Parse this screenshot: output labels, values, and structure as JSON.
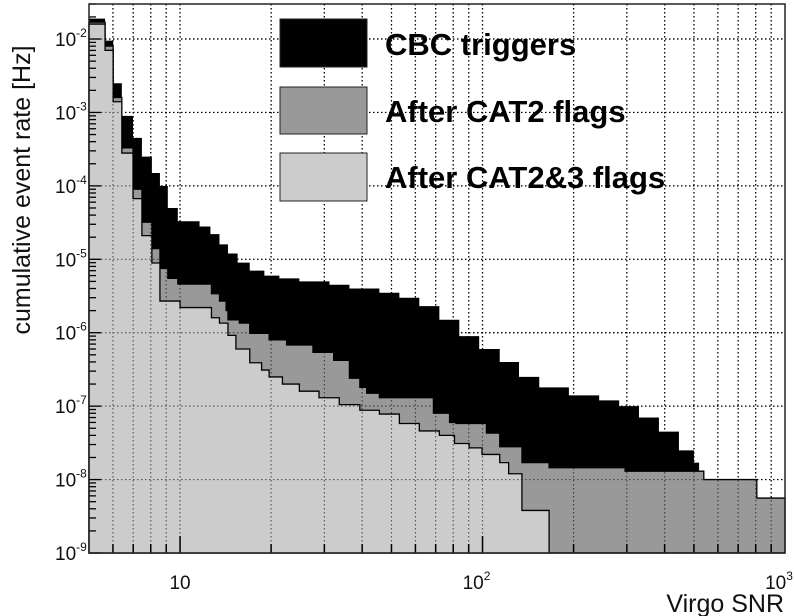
{
  "chart_data": {
    "type": "area",
    "title": "",
    "xlabel": "Virgo SNR",
    "ylabel": "cumulative event rate [Hz]",
    "xscale": "log",
    "yscale": "log",
    "xlim": [
      5,
      1000
    ],
    "ylim": [
      1e-09,
      0.03
    ],
    "grid": true,
    "legend_position": "top-right",
    "x_tick_labels": [
      {
        "value": 10,
        "base": "10",
        "exp": ""
      },
      {
        "value": 100,
        "base": "10",
        "exp": "2"
      },
      {
        "value": 1000,
        "base": "10",
        "exp": "3"
      }
    ],
    "y_tick_labels": [
      {
        "value": 0.01,
        "base": "10",
        "exp": "-2"
      },
      {
        "value": 0.001,
        "base": "10",
        "exp": "-3"
      },
      {
        "value": 0.0001,
        "base": "10",
        "exp": "-4"
      },
      {
        "value": 1e-05,
        "base": "10",
        "exp": "-5"
      },
      {
        "value": 1e-06,
        "base": "10",
        "exp": "-6"
      },
      {
        "value": 1e-07,
        "base": "10",
        "exp": "-7"
      },
      {
        "value": 1e-08,
        "base": "10",
        "exp": "-8"
      },
      {
        "value": 1e-09,
        "base": "10",
        "exp": "-9"
      }
    ],
    "series": [
      {
        "name": "CBC triggers",
        "color": "#000000",
        "steps": [
          [
            5,
            0.019
          ],
          [
            5.65,
            0.0095
          ],
          [
            6.01,
            0.0025
          ],
          [
            6.42,
            0.0009
          ],
          [
            6.99,
            0.00045
          ],
          [
            7.48,
            0.00025
          ],
          [
            8.07,
            0.00015
          ],
          [
            8.58,
            0.0001
          ],
          [
            9.11,
            5e-05
          ],
          [
            9.83,
            3.3e-05
          ],
          [
            11.6,
            2.8e-05
          ],
          [
            12.6,
            2.2e-05
          ],
          [
            13.5,
            1.6e-05
          ],
          [
            14.4,
            1.2e-05
          ],
          [
            15.5,
            9e-06
          ],
          [
            17.0,
            7e-06
          ],
          [
            19.0,
            6e-06
          ],
          [
            21.3,
            5.5e-06
          ],
          [
            24.8,
            5e-06
          ],
          [
            31.2,
            4.5e-06
          ],
          [
            36.3,
            4e-06
          ],
          [
            45.6,
            3.5e-06
          ],
          [
            53.1,
            3e-06
          ],
          [
            61.8,
            2.3e-06
          ],
          [
            72.0,
            1.5e-06
          ],
          [
            83.8,
            9e-07
          ],
          [
            97.5,
            6e-07
          ],
          [
            114,
            4e-07
          ],
          [
            132,
            2.5e-07
          ],
          [
            154,
            1.8e-07
          ],
          [
            193,
            1.4e-07
          ],
          [
            243,
            1.2e-07
          ],
          [
            283,
            1e-07
          ],
          [
            329,
            7e-08
          ],
          [
            383,
            4.5e-08
          ],
          [
            446,
            2.5e-08
          ],
          [
            500,
            1.7e-08
          ],
          [
            520,
            1.1e-08
          ],
          [
            539,
            1e-08
          ],
          [
            807,
            5.6e-09
          ]
        ]
      },
      {
        "name": "After CAT2 flags",
        "color": "#999999",
        "steps": [
          [
            5,
            0.017
          ],
          [
            5.65,
            0.008
          ],
          [
            6.01,
            0.0016
          ],
          [
            6.42,
            0.00033
          ],
          [
            6.99,
            9e-05
          ],
          [
            7.48,
            3.2e-05
          ],
          [
            8.07,
            1.4e-05
          ],
          [
            8.58,
            7.5e-06
          ],
          [
            9.11,
            5.5e-06
          ],
          [
            9.83,
            4.6e-06
          ],
          [
            12.7,
            3.4e-06
          ],
          [
            13.5,
            2.7e-06
          ],
          [
            14.2,
            2e-06
          ],
          [
            14.4,
            1.5e-06
          ],
          [
            15.7,
            1.35e-06
          ],
          [
            17.0,
            9.8e-07
          ],
          [
            19.7,
            8e-07
          ],
          [
            22.5,
            6.8e-07
          ],
          [
            27.5,
            5.4e-07
          ],
          [
            32.2,
            4.2e-07
          ],
          [
            36.3,
            2.4e-07
          ],
          [
            39.3,
            1.8e-07
          ],
          [
            41.4,
            1.5e-07
          ],
          [
            45.6,
            1.3e-07
          ],
          [
            68.8,
            8e-08
          ],
          [
            77.8,
            6e-08
          ],
          [
            81.7,
            5.8e-08
          ],
          [
            103,
            4.3e-08
          ],
          [
            114,
            2.8e-08
          ],
          [
            135,
            1.7e-08
          ],
          [
            166,
            1.45e-08
          ],
          [
            296,
            1.3e-08
          ],
          [
            539,
            1e-08
          ],
          [
            807,
            5.6e-09
          ]
        ]
      },
      {
        "name": "After CAT2&3 flags",
        "color": "#cccccc",
        "steps": [
          [
            5,
            0.016
          ],
          [
            5.65,
            0.007
          ],
          [
            6.01,
            0.0014
          ],
          [
            6.42,
            0.00028
          ],
          [
            6.99,
            6.7e-05
          ],
          [
            7.48,
            2.1e-05
          ],
          [
            8.07,
            8.9e-06
          ],
          [
            8.58,
            2.7e-06
          ],
          [
            10.0,
            2.2e-06
          ],
          [
            12.7,
            1.6e-06
          ],
          [
            13.5,
            1.35e-06
          ],
          [
            14.4,
            9.2e-07
          ],
          [
            15.3,
            6e-07
          ],
          [
            17.0,
            3.9e-07
          ],
          [
            18.6,
            3.1e-07
          ],
          [
            19.7,
            2.5e-07
          ],
          [
            21.8,
            2e-07
          ],
          [
            24.8,
            1.6e-07
          ],
          [
            28.8,
            1.3e-07
          ],
          [
            33.6,
            1.05e-07
          ],
          [
            39.3,
            8.8e-08
          ],
          [
            45.6,
            7.8e-08
          ],
          [
            53.1,
            5.8e-08
          ],
          [
            61.8,
            4.6e-08
          ],
          [
            72.0,
            4e-08
          ],
          [
            80.8,
            3.1e-08
          ],
          [
            90.3,
            2.7e-08
          ],
          [
            99.6,
            2.2e-08
          ],
          [
            114,
            1.7e-08
          ],
          [
            122,
            1.2e-08
          ],
          [
            135,
            3.8e-09
          ],
          [
            166,
            0
          ]
        ]
      }
    ]
  }
}
